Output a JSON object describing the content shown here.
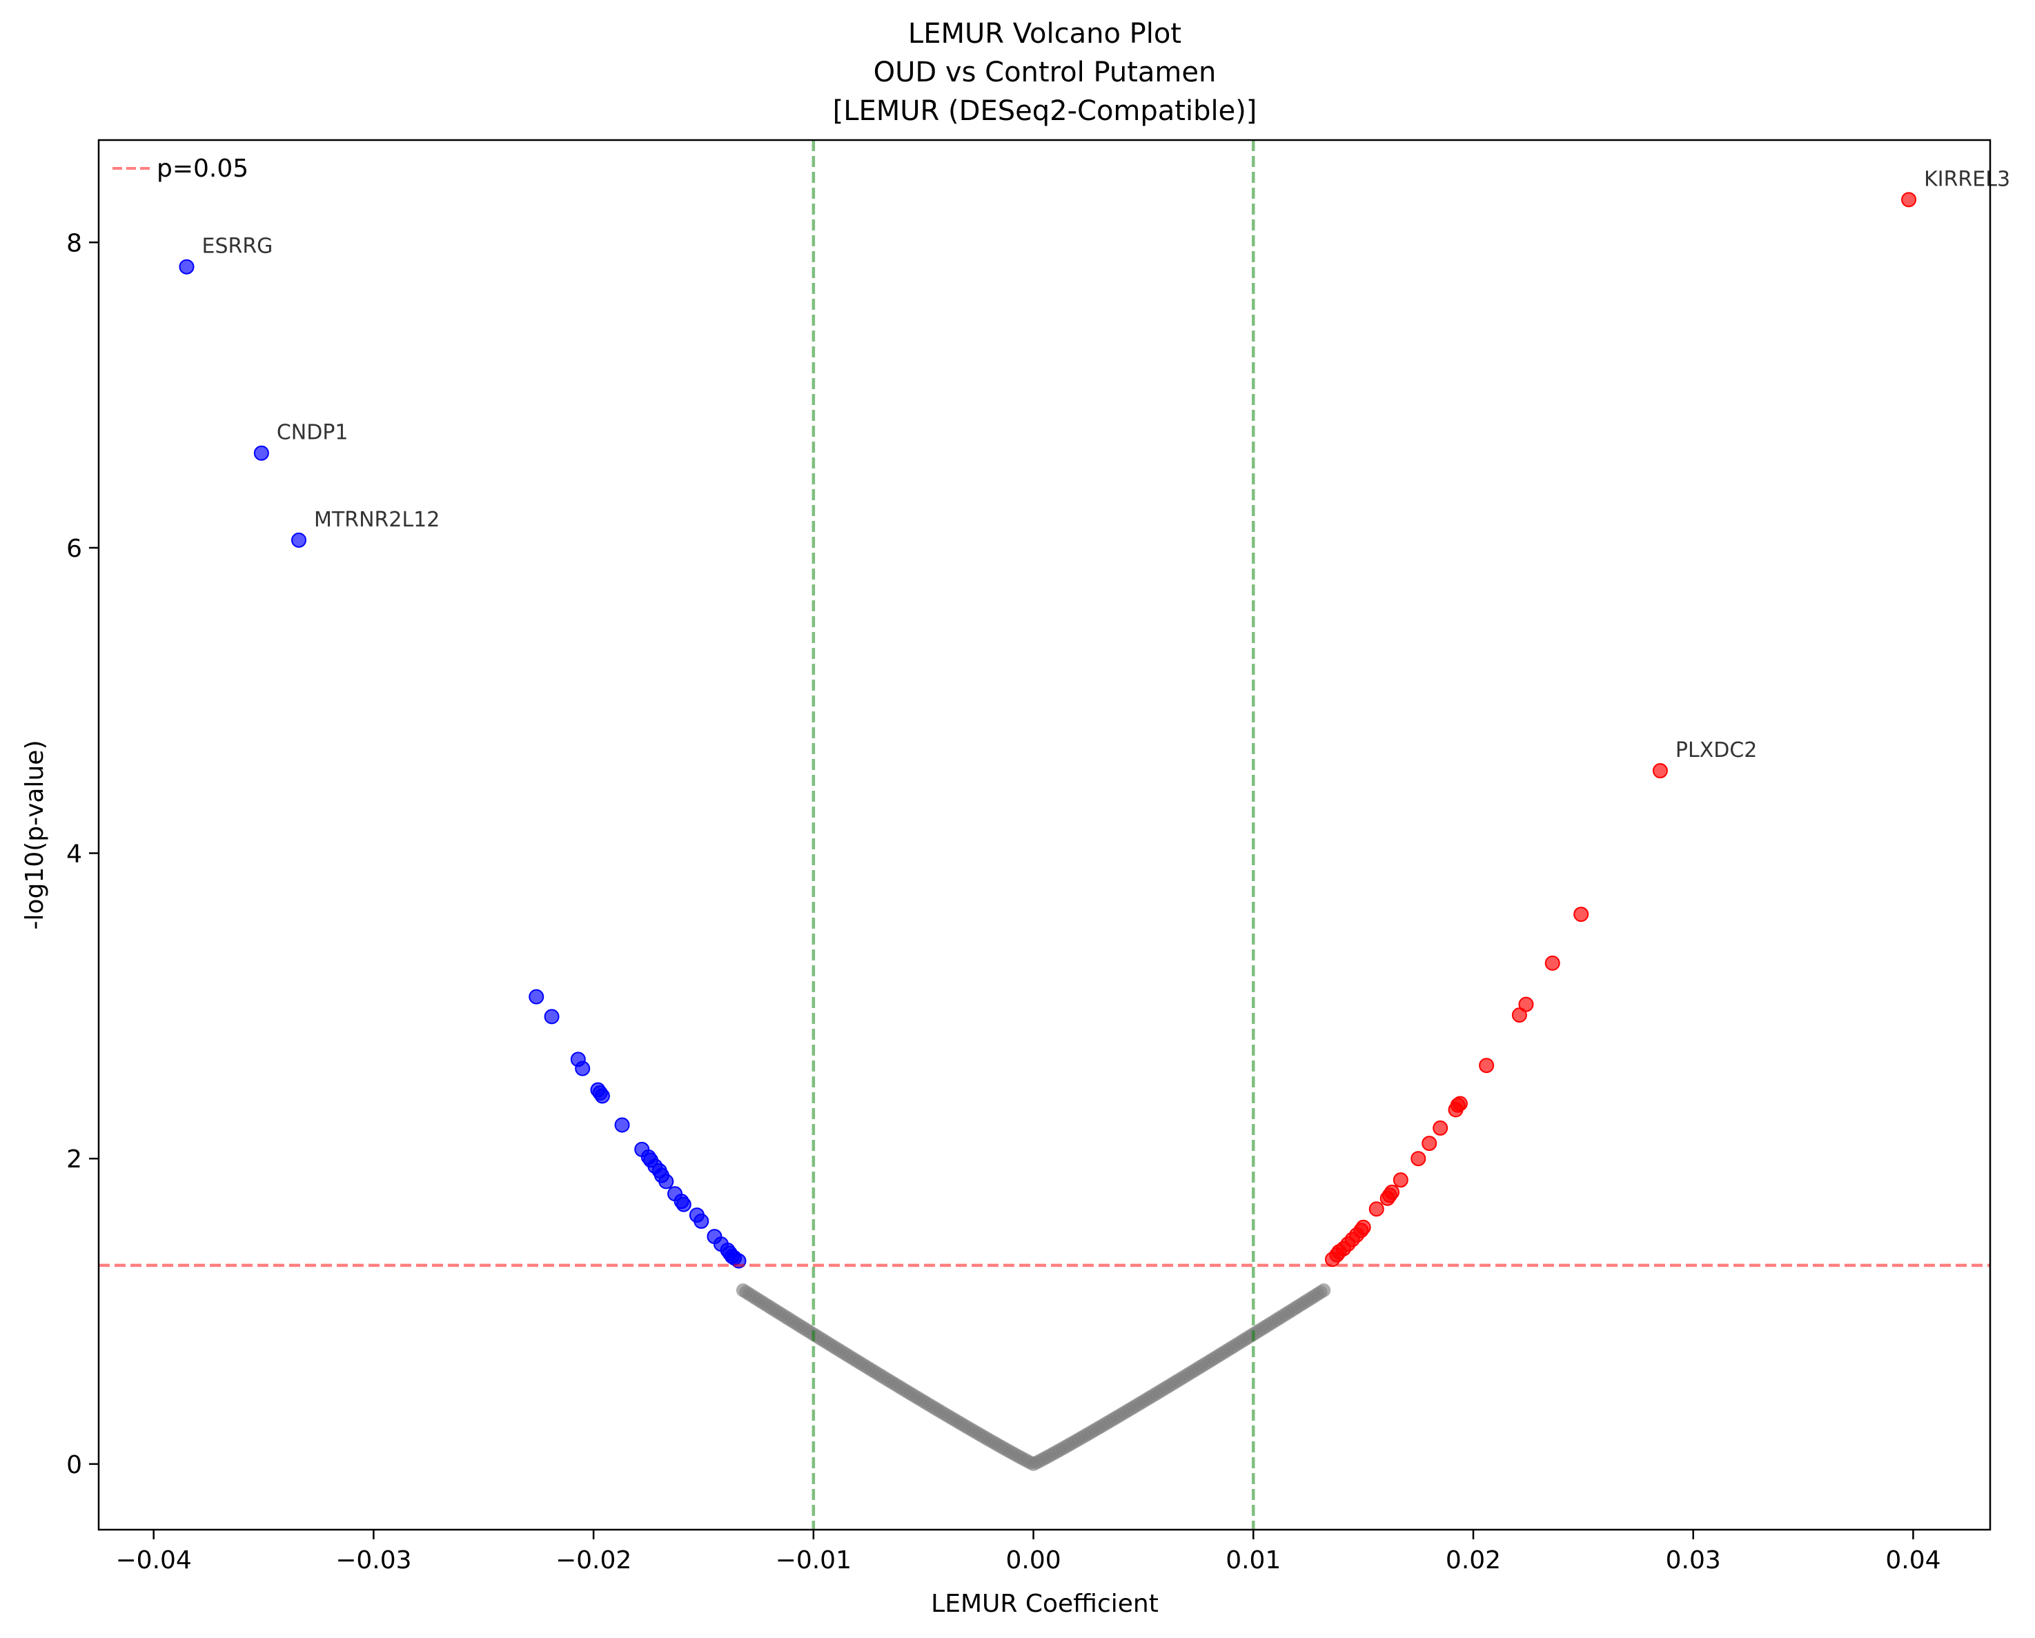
{
  "chart_data": {
    "type": "scatter",
    "title_lines": [
      "LEMUR Volcano Plot",
      "OUD vs Control Putamen",
      "[LEMUR (DESeq2-Compatible)]"
    ],
    "xlabel": "LEMUR Coefficient",
    "ylabel": "-log10(p-value)",
    "xlim": [
      -0.0425,
      0.0435
    ],
    "ylim": [
      -0.43,
      8.67
    ],
    "x_ticks": [
      -0.04,
      -0.03,
      -0.02,
      -0.01,
      0.0,
      0.01,
      0.02,
      0.03,
      0.04
    ],
    "x_tick_labels": [
      "−0.04",
      "−0.03",
      "−0.02",
      "−0.01",
      "0.00",
      "0.01",
      "0.02",
      "0.03",
      "0.04"
    ],
    "y_ticks": [
      0,
      2,
      4,
      6,
      8
    ],
    "y_tick_labels": [
      "0",
      "2",
      "4",
      "6",
      "8"
    ],
    "legend": {
      "position": "top-left",
      "entries": [
        {
          "label": "p=0.05",
          "color": "#ff0000",
          "style": "dashed"
        }
      ]
    },
    "reference_lines": [
      {
        "axis": "y",
        "value": 1.301,
        "color": "#ff0000",
        "style": "dashed",
        "legend": "p=0.05"
      },
      {
        "axis": "x",
        "value": -0.01,
        "color": "#008000",
        "style": "dashed"
      },
      {
        "axis": "x",
        "value": 0.01,
        "color": "#008000",
        "style": "dashed"
      }
    ],
    "colors": {
      "down": "#0000ff",
      "up": "#ff0000",
      "ns": "#808080"
    },
    "grid": false,
    "labeled_points": [
      {
        "gene": "ESRRG",
        "x": -0.0385,
        "y": 7.84,
        "group": "down"
      },
      {
        "gene": "CNDP1",
        "x": -0.0351,
        "y": 6.62,
        "group": "down"
      },
      {
        "gene": "MTRNR2L12",
        "x": -0.0334,
        "y": 6.05,
        "group": "down"
      },
      {
        "gene": "KIRREL3",
        "x": 0.0398,
        "y": 8.28,
        "group": "up"
      },
      {
        "gene": "PLXDC2",
        "x": 0.0285,
        "y": 4.54,
        "group": "up"
      }
    ],
    "series": [
      {
        "name": "down",
        "color": "#0000ff",
        "x": [
          -0.0226,
          -0.0219,
          -0.0207,
          -0.0205,
          -0.0198,
          -0.0197,
          -0.0196,
          -0.0187,
          -0.0178,
          -0.0175,
          -0.0174,
          -0.0172,
          -0.017,
          -0.0169,
          -0.0167,
          -0.0163,
          -0.016,
          -0.0159,
          -0.0153,
          -0.0151,
          -0.0145,
          -0.0142,
          -0.0139,
          -0.0138,
          -0.0137,
          -0.0136,
          -0.0134
        ],
        "y": [
          3.06,
          2.93,
          2.65,
          2.59,
          2.45,
          2.43,
          2.41,
          2.22,
          2.06,
          2.01,
          1.99,
          1.95,
          1.92,
          1.89,
          1.85,
          1.77,
          1.72,
          1.7,
          1.63,
          1.59,
          1.49,
          1.44,
          1.4,
          1.38,
          1.36,
          1.35,
          1.33
        ]
      },
      {
        "name": "up",
        "color": "#ff0000",
        "x": [
          0.0249,
          0.0236,
          0.0224,
          0.0221,
          0.0206,
          0.0194,
          0.0193,
          0.0192,
          0.0185,
          0.018,
          0.0175,
          0.0167,
          0.0163,
          0.0162,
          0.0161,
          0.0156,
          0.015,
          0.0149,
          0.0147,
          0.0145,
          0.0143,
          0.0141,
          0.0139,
          0.0138,
          0.0136
        ],
        "y": [
          3.6,
          3.28,
          3.01,
          2.94,
          2.61,
          2.36,
          2.35,
          2.32,
          2.2,
          2.1,
          2.0,
          1.86,
          1.78,
          1.76,
          1.74,
          1.67,
          1.55,
          1.53,
          1.5,
          1.47,
          1.44,
          1.41,
          1.39,
          1.37,
          1.34
        ]
      },
      {
        "name": "ns",
        "color": "#808080",
        "curve": "y = 0.85 * (|x| / 0.01) ^ 1.05",
        "x_range": [
          -0.0132,
          0.0132
        ]
      }
    ]
  }
}
